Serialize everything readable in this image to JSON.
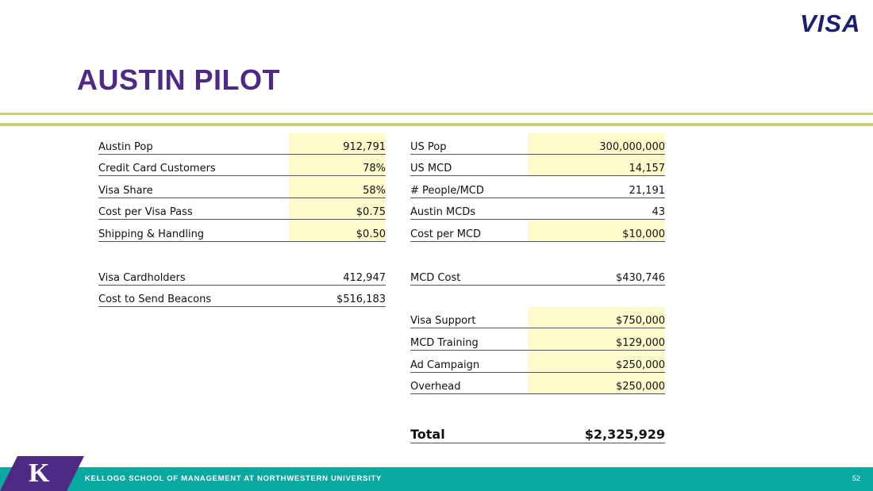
{
  "brand": {
    "logo_text": "VISA"
  },
  "title": "AUSTIN PILOT",
  "left_table": [
    {
      "label": "Austin Pop",
      "value": "912,791",
      "highlight": true
    },
    {
      "label": "Credit Card Customers",
      "value": "78%",
      "highlight": true
    },
    {
      "label": "Visa Share",
      "value": "58%",
      "highlight": true
    },
    {
      "label": "Cost per Visa Pass",
      "value": "$0.75",
      "highlight": true
    },
    {
      "label": "Shipping & Handling",
      "value": "$0.50",
      "highlight": true
    },
    {
      "label": "Visa Cardholders",
      "value": "412,947",
      "highlight": false
    },
    {
      "label": "Cost to Send Beacons",
      "value": "$516,183",
      "highlight": false
    }
  ],
  "right_table": [
    {
      "label": "US Pop",
      "value": "300,000,000",
      "highlight": true
    },
    {
      "label": "US MCD",
      "value": "14,157",
      "highlight": true
    },
    {
      "label": "# People/MCD",
      "value": "21,191",
      "highlight": false
    },
    {
      "label": "Austin MCDs",
      "value": "43",
      "highlight": false
    },
    {
      "label": "Cost per MCD",
      "value": "$10,000",
      "highlight": true
    },
    {
      "label": "MCD Cost",
      "value": "$430,746",
      "highlight": false
    },
    {
      "label": "Visa Support",
      "value": "$750,000",
      "highlight": true
    },
    {
      "label": "MCD Training",
      "value": "$129,000",
      "highlight": true
    },
    {
      "label": "Ad Campaign",
      "value": "$250,000",
      "highlight": true
    },
    {
      "label": "Overhead",
      "value": "$250,000",
      "highlight": true
    }
  ],
  "total": {
    "label": "Total",
    "value": "$2,325,929"
  },
  "footer": {
    "k_logo": "K",
    "school": "KELLOGG SCHOOL OF MANAGEMENT AT NORTHWESTERN UNIVERSITY",
    "page_number": "52"
  },
  "colors": {
    "title": "#4e2a84",
    "visa_blue": "#1a1f71",
    "rule": "#cfcf73",
    "highlight": "#fdfbcb",
    "footer_teal": "#09a8a0",
    "footer_purple": "#4e2a84"
  }
}
